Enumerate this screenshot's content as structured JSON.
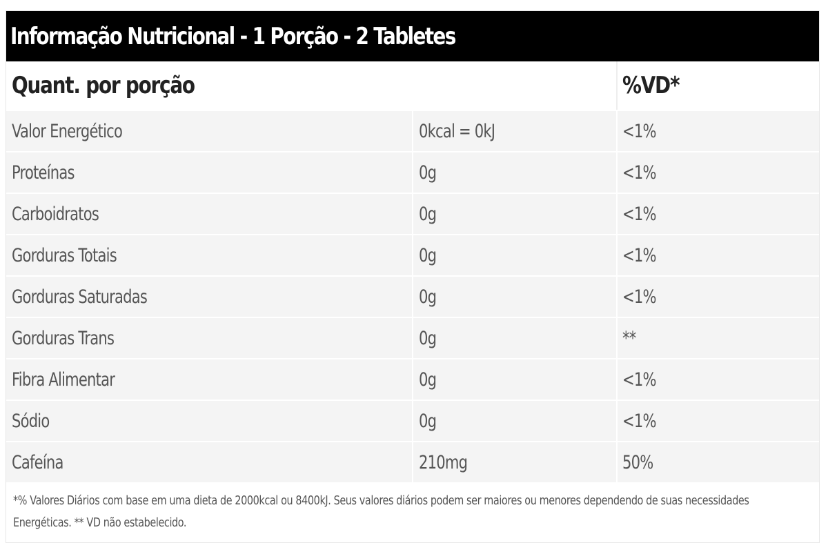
{
  "title": "Informação Nutricional - 1 Porção - 2 Tabletes",
  "header": {
    "col_quantity": "Quant. por porção",
    "col_vd": "%VD*"
  },
  "rows": [
    {
      "name": "Valor Energético",
      "amount": "0kcal = 0kJ",
      "vd": "<1%"
    },
    {
      "name": "Proteínas",
      "amount": "0g",
      "vd": "<1%"
    },
    {
      "name": "Carboidratos",
      "amount": "0g",
      "vd": "<1%"
    },
    {
      "name": "Gorduras Totais",
      "amount": "0g",
      "vd": "<1%"
    },
    {
      "name": "Gorduras Saturadas",
      "amount": "0g",
      "vd": "<1%"
    },
    {
      "name": "Gorduras Trans",
      "amount": "0g",
      "vd": "**"
    },
    {
      "name": "Fibra Alimentar",
      "amount": "0g",
      "vd": "<1%"
    },
    {
      "name": "Sódio",
      "amount": "0g",
      "vd": "<1%"
    },
    {
      "name": "Cafeína",
      "amount": "210mg",
      "vd": "50%"
    }
  ],
  "footnote": "*% Valores Diários com base em uma dieta de 2000kcal ou 8400kJ. Seus valores diários podem ser maiores ou menores dependendo de suas necessidades Energéticas. ** VD não estabelecido.",
  "colors": {
    "title_bg": "#000000",
    "title_text": "#ffffff",
    "row_bg": "#f4f4f4",
    "text": "#555555"
  }
}
